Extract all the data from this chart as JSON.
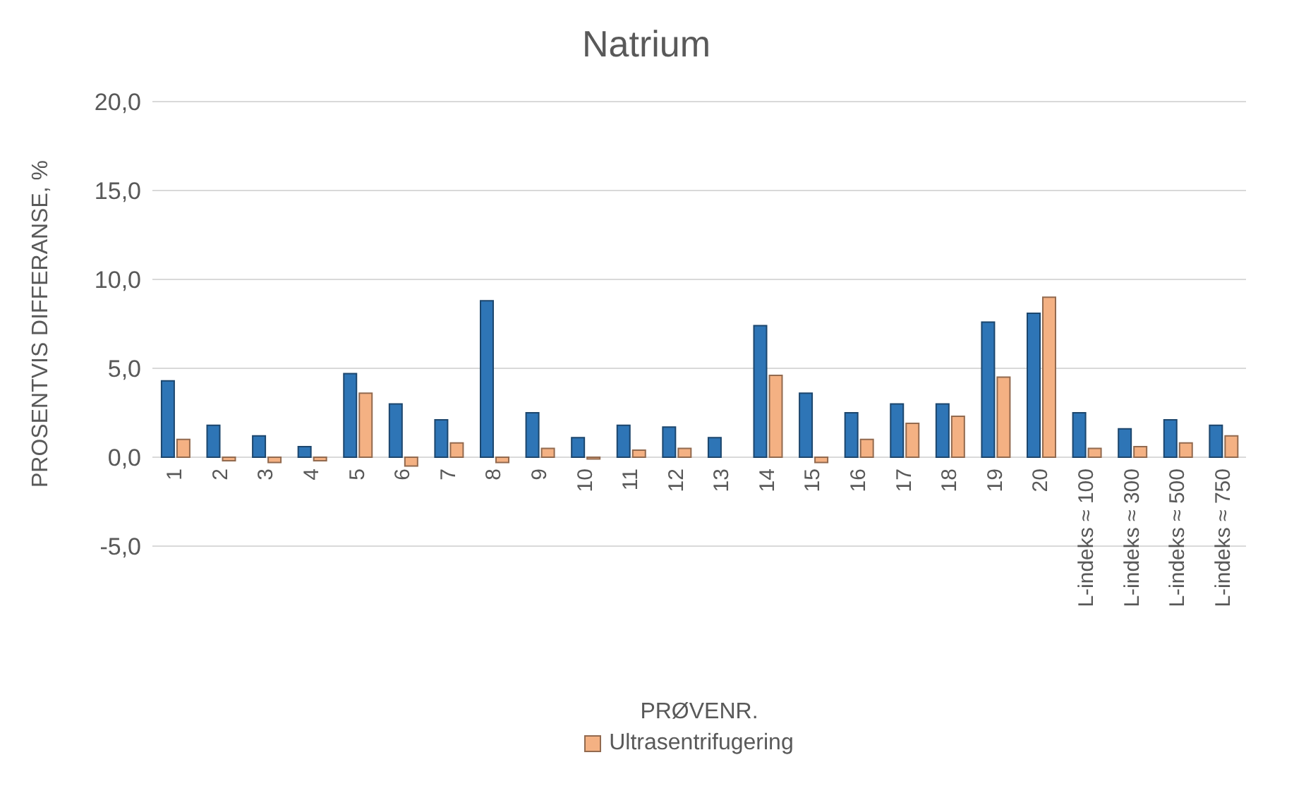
{
  "chart_data": {
    "type": "bar",
    "title": "Natrium",
    "xlabel": "PRØVENR.",
    "ylabel": "PROSENTVIS DIFFERANSE, %",
    "categories": [
      "1",
      "2",
      "3",
      "4",
      "5",
      "6",
      "7",
      "8",
      "9",
      "10",
      "11",
      "12",
      "13",
      "14",
      "15",
      "16",
      "17",
      "18",
      "19",
      "20",
      "L-indeks ≈ 100",
      "L-indeks ≈ 300",
      "L-indeks ≈ 500",
      "L-indeks ≈ 750"
    ],
    "series": [
      {
        "color": "#2e75b6",
        "values": [
          4.3,
          1.8,
          1.2,
          0.6,
          4.7,
          3.0,
          2.1,
          8.8,
          2.5,
          1.1,
          1.8,
          1.7,
          1.1,
          7.4,
          3.6,
          2.5,
          3.0,
          3.0,
          7.6,
          8.1,
          2.5,
          1.6,
          2.1,
          1.8
        ]
      },
      {
        "name": "Ultrasentrifugering",
        "color": "#f4b183",
        "values": [
          1.0,
          -0.2,
          -0.3,
          -0.2,
          3.6,
          -0.5,
          0.8,
          -0.3,
          0.5,
          -0.1,
          0.4,
          0.5,
          null,
          4.6,
          -0.3,
          1.0,
          1.9,
          2.3,
          4.5,
          9.0,
          0.5,
          0.6,
          0.8,
          1.2
        ]
      }
    ],
    "ylim": [
      -5,
      20
    ],
    "yticks": [
      {
        "value": -5,
        "label": "-5,0"
      },
      {
        "value": 0,
        "label": "0,0"
      },
      {
        "value": 5,
        "label": "5,0"
      },
      {
        "value": 10,
        "label": "10,0"
      },
      {
        "value": 15,
        "label": "15,0"
      },
      {
        "value": 20,
        "label": "20,0"
      }
    ],
    "grid": "y",
    "legend": "bottom"
  }
}
